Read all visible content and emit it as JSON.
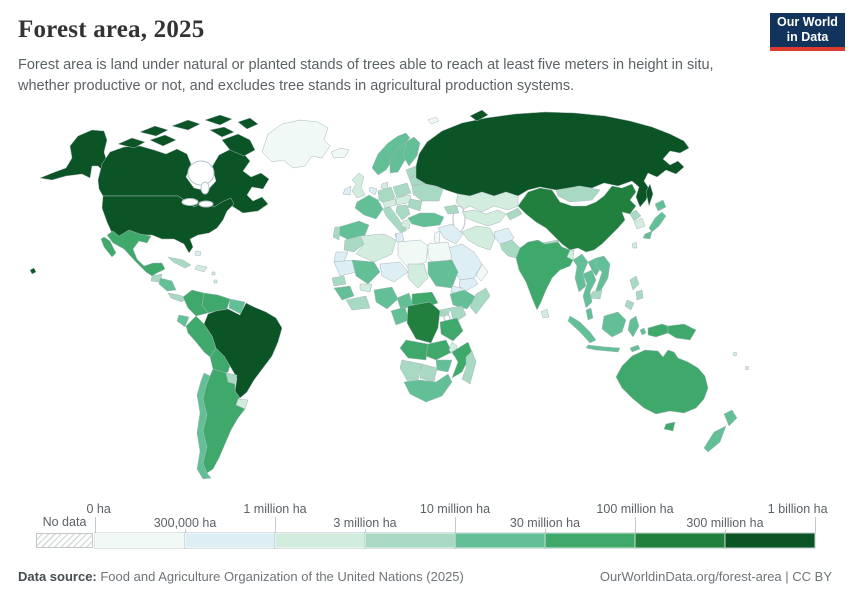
{
  "header": {
    "title": "Forest area, 2025",
    "subtitle_line1": "Forest area is land under natural or planted stands of trees able to reach at least five meters in height in situ,",
    "subtitle_line2": "whether productive or not, and excludes tree stands in agricultural production systems.",
    "subtitle": "Forest area is land under natural or planted stands of trees able to reach at least five meters in height in situ, whether productive or not, and excludes tree stands in agricultural production systems.",
    "logo": {
      "line1": "Our World",
      "line2": "in Data",
      "bg_color": "#12335c",
      "accent_color": "#dc3b2e"
    }
  },
  "footer": {
    "source_label": "Data source:",
    "source_text": " Food and Agriculture Organization of the United Nations (2025)",
    "right_text": "OurWorldinData.org/forest-area | CC BY"
  },
  "chart_data": {
    "type": "heatmap",
    "subtype": "choropleth-world-map",
    "title": "Forest area, 2025",
    "unit": "hectares",
    "scale_type": "logarithmic-binned",
    "legend_position": "bottom",
    "no_data_label": "No data",
    "bin_edges_labels": [
      "0 ha",
      "300,000 ha",
      "1 million ha",
      "3 million ha",
      "10 million ha",
      "30 million ha",
      "100 million ha",
      "300 million ha",
      "1 billion ha"
    ],
    "bin_ranges": [
      "0–300,000 ha",
      "300,000–1 million ha",
      "1–3 million ha",
      "3–10 million ha",
      "10–30 million ha",
      "30–100 million ha",
      "100–300 million ha",
      "300 million–1 billion ha"
    ],
    "bin_colors": [
      "#f0f9f5",
      "#ddeef4",
      "#d2ecdd",
      "#a8d9c2",
      "#62bf96",
      "#3fa96b",
      "#22803f",
      "#0b5425"
    ],
    "ocean_color": "#ffffff",
    "border_color": "#a9b6bc",
    "country_bins": {
      "canada": 7,
      "canada-arctic-islands": 7,
      "greenland": 0,
      "usa": 7,
      "usa-alaska": 7,
      "usa-hawaii": 7,
      "mexico": 5,
      "guatemala": 3,
      "honduras-nicaragua": 4,
      "costa-rica-panama": 3,
      "cuba": 3,
      "hispaniola": 2,
      "bahamas": 1,
      "lesser-antilles": 2,
      "colombia": 5,
      "venezuela": 5,
      "guyanas": 4,
      "ecuador": 4,
      "peru": 5,
      "brazil": 7,
      "bolivia": 5,
      "paraguay": 3,
      "uruguay": 2,
      "argentina": 5,
      "chile": 4,
      "iceland": 0,
      "united-kingdom": 2,
      "ireland": 1,
      "norway": 4,
      "sweden": 4,
      "finland": 4,
      "denmark": 2,
      "benelux": 1,
      "germany": 3,
      "poland": 3,
      "baltics": 3,
      "belarus": 3,
      "ukraine": 3,
      "czechia-hungary": 2,
      "alpine": 2,
      "france": 4,
      "spain": 4,
      "portugal": 3,
      "italy": 3,
      "balkans": 3,
      "greece": 2,
      "romania": 3,
      "svalbard": 0,
      "russia": 7,
      "kazakhstan": 2,
      "central-asia": 2,
      "kyrgyzstan": 3,
      "caucasus": 3,
      "turkey": 4,
      "syria-iraq": 1,
      "levant": 0,
      "saudi-arabia": 1,
      "yemen": 1,
      "oman": 0,
      "iran": 2,
      "afghanistan": 1,
      "pakistan": 3,
      "morocco": 3,
      "western-sahara": 1,
      "algeria": 2,
      "tunisia": 1,
      "libya": 0,
      "egypt": 0,
      "mauritania": 1,
      "mali": 4,
      "niger": 1,
      "chad": 2,
      "sudan": 4,
      "eritrea": 1,
      "ethiopia": 4,
      "somalia": 3,
      "senegal": 3,
      "guinea": 4,
      "cote-divoire-ghana": 3,
      "burkina-faso": 2,
      "nigeria": 4,
      "cameroon": 4,
      "central-african-republic": 5,
      "gabon-congo": 4,
      "dr-congo": 6,
      "uganda": 3,
      "kenya": 3,
      "tanzania": 5,
      "angola": 5,
      "zambia": 5,
      "malawi": 2,
      "mozambique": 5,
      "zimbabwe": 4,
      "botswana": 3,
      "namibia": 3,
      "south-africa": 4,
      "madagascar": 3,
      "mongolia": 3,
      "china": 6,
      "north-korea": 3,
      "south-korea": 2,
      "japan": 4,
      "taiwan": 2,
      "nepal": 3,
      "bangladesh": 2,
      "india": 5,
      "sri-lanka": 2,
      "myanmar": 4,
      "thailand": 4,
      "laos": 4,
      "vietnam": 4,
      "cambodia": 3,
      "indonesia": 4,
      "indonesia-papua": 5,
      "papua-new-guinea": 5,
      "philippines": 3,
      "australia": 5,
      "new-zealand": 4,
      "pacific-islands": 2
    }
  }
}
